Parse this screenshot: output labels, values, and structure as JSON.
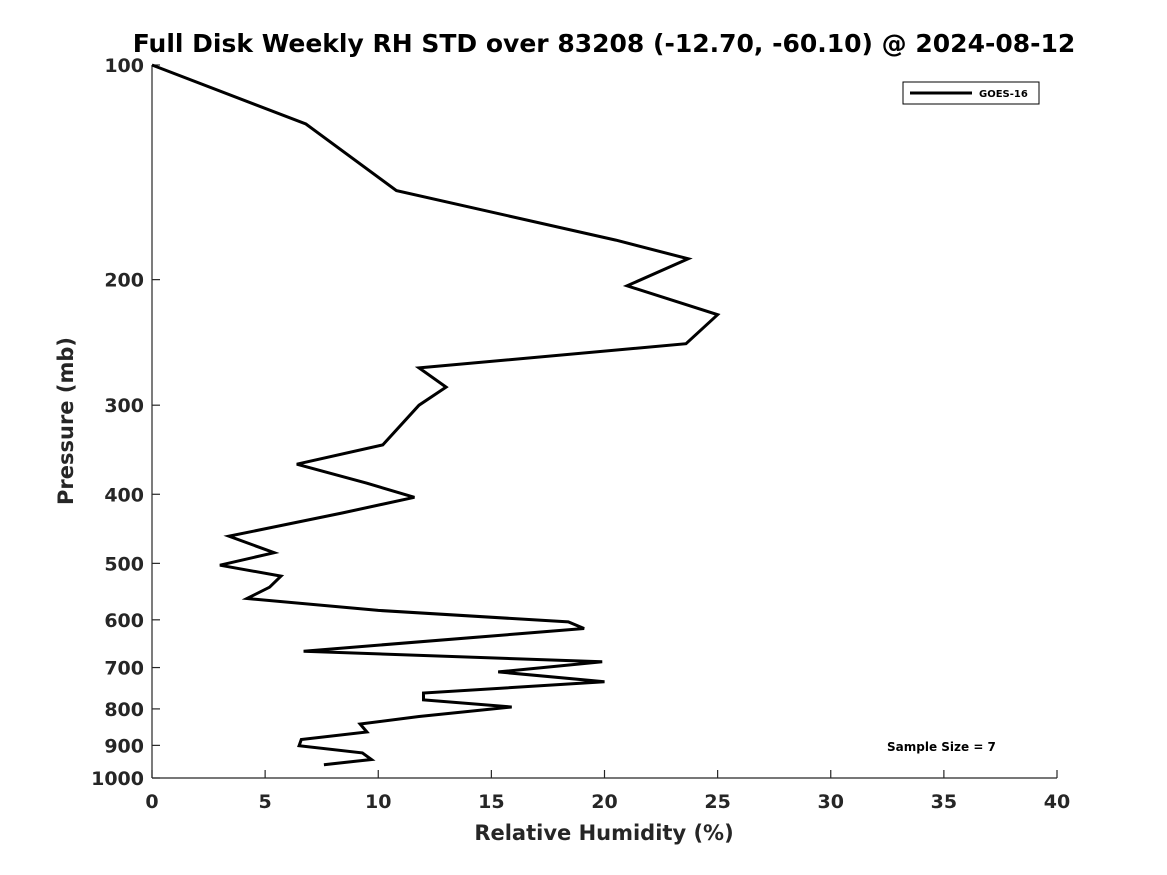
{
  "chart_data": {
    "type": "line",
    "title": "Full Disk Weekly RH STD over 83208 (-12.70, -60.10) @ 2024-08-12",
    "xlabel": "Relative Humidity (%)",
    "ylabel": "Pressure (mb)",
    "xlim": [
      0,
      40
    ],
    "ylim": [
      100,
      1000
    ],
    "y_scale": "log",
    "y_reversed": true,
    "x_ticks": [
      "0",
      "5",
      "10",
      "15",
      "20",
      "25",
      "30",
      "35",
      "40"
    ],
    "y_ticks": [
      "100",
      "200",
      "300",
      "400",
      "500",
      "600",
      "700",
      "800",
      "900",
      "1000"
    ],
    "grid": false,
    "legend_position": "top-right",
    "annotation": "Sample Size = 7",
    "series": [
      {
        "name": "GOES-16",
        "color": "#000000",
        "x": [
          0,
          6.8,
          10.8,
          20.5,
          23.7,
          21.0,
          25.0,
          23.6,
          11.8,
          13.0,
          11.8,
          10.2,
          6.4,
          9.5,
          11.6,
          8.4,
          3.4,
          5.4,
          3.0,
          5.7,
          5.2,
          4.2,
          10.0,
          18.4,
          19.1,
          6.7,
          19.9,
          15.3,
          20.0,
          12.0,
          12.0,
          15.9,
          11.8,
          9.2,
          9.5,
          6.6,
          6.5,
          9.3,
          9.7,
          7.6
        ],
        "y": [
          100,
          121,
          150,
          176,
          187,
          204,
          224,
          246,
          266,
          283,
          300,
          341,
          363,
          386,
          404,
          425,
          458,
          483,
          503,
          521,
          540,
          560,
          582,
          604,
          617,
          664,
          687,
          710,
          733,
          760,
          777,
          795,
          820,
          840,
          862,
          883,
          901,
          922,
          942,
          958
        ]
      }
    ]
  }
}
